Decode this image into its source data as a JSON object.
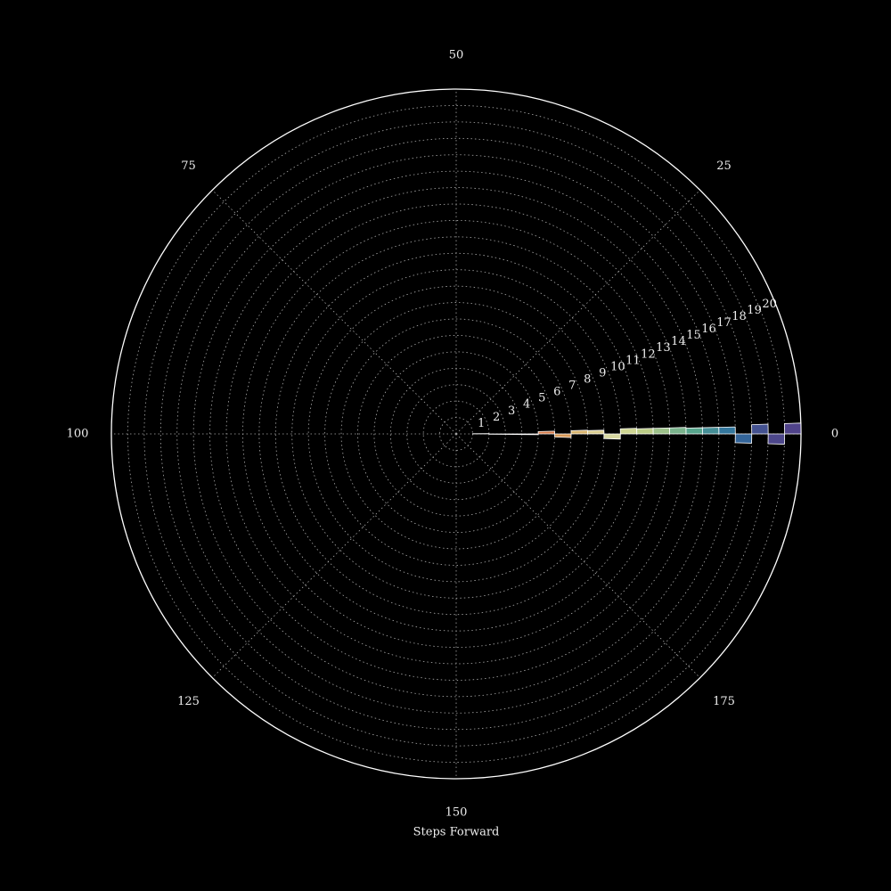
{
  "chart_data": {
    "type": "bar",
    "polar": true,
    "xlabel": "Steps Forward",
    "values": [
      0.3,
      -0.3,
      -0.3,
      -0.3,
      0.9,
      -1.0,
      0.9,
      0.8,
      -1.0,
      1.0,
      0.9,
      0.9,
      0.9,
      0.8,
      0.8,
      0.8,
      -1.0,
      1.0,
      -1.0,
      1.0
    ],
    "colors": [
      "#9e0142",
      "#c0254a",
      "#dc484c",
      "#f06744",
      "#f88d52",
      "#fdb365",
      "#fed481",
      "#fff0a8",
      "#fefebd",
      "#f2faac",
      "#dcf09e",
      "#b8e3a2",
      "#8fd2a4",
      "#66c2a5",
      "#51a7b0",
      "#3d8cb9",
      "#3c75b4",
      "#5060aa",
      "#5a54a3",
      "#5e4fa2"
    ],
    "xlim": [
      0,
      200
    ],
    "xticks": [
      0,
      25,
      50,
      75,
      100,
      125,
      150,
      175
    ],
    "rlim": [
      0,
      21
    ],
    "rticks": [
      1,
      2,
      3,
      4,
      5,
      6,
      7,
      8,
      9,
      10,
      11,
      12,
      13,
      14,
      15,
      16,
      17,
      18,
      19,
      20
    ],
    "grid": true
  }
}
